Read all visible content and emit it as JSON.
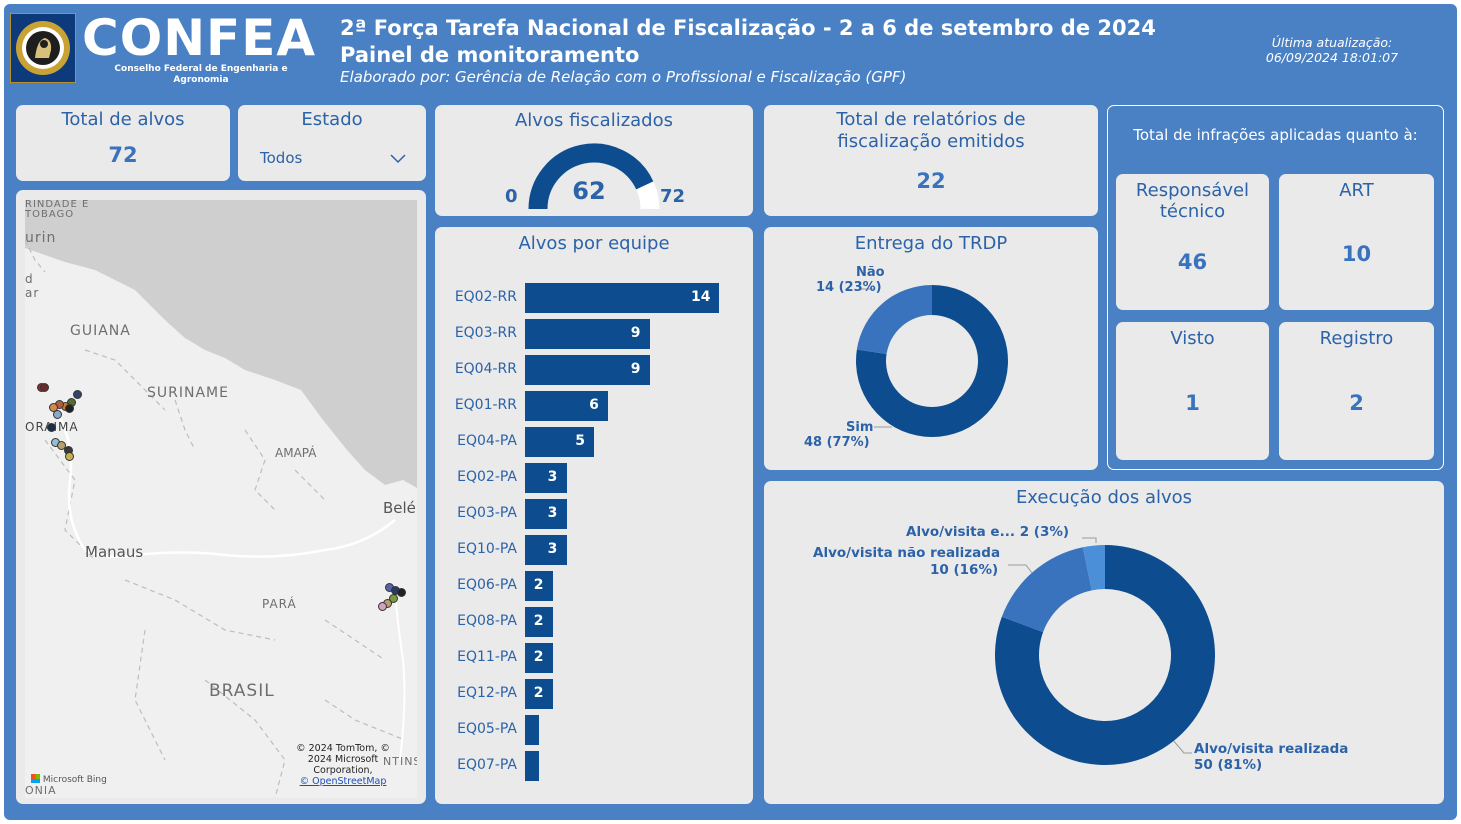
{
  "header": {
    "logo_text": "CONFEA",
    "logo_subtext": "Conselho Federal de Engenharia e Agronomia",
    "title": "2ª Força Tarefa Nacional de Fiscalização - 2 a 6 de setembro de 2024",
    "subtitle": "Painel de monitoramento",
    "author": "Elaborado por: Gerência de Relação com o Profissional e Fiscalização (GPF)",
    "updated_label": "Última atualização:",
    "updated_value": "06/09/2024 18:01:07"
  },
  "colors": {
    "background": "#4a81c4",
    "card": "#eaeaea",
    "dark_blue": "#0d4d8f",
    "mid_blue": "#3a73bd",
    "light_blue": "#4a8fd8"
  },
  "total_alvos": {
    "label": "Total de alvos",
    "value": "72"
  },
  "estado": {
    "label": "Estado",
    "selected": "Todos",
    "icon": "chevron-down-icon"
  },
  "gauge": {
    "title": "Alvos fiscalizados",
    "min": "0",
    "value": "62",
    "max": "72",
    "fraction": 0.8611
  },
  "relatorios": {
    "label": "Total de relatórios de fiscalização emitidos",
    "value": "22"
  },
  "infracoes": {
    "title": "Total de infrações aplicadas quanto à:",
    "items": [
      {
        "label": "Responsável técnico",
        "value": "46"
      },
      {
        "label": "ART",
        "value": "10"
      },
      {
        "label": "Visto",
        "value": "1"
      },
      {
        "label": "Registro",
        "value": "2"
      }
    ]
  },
  "map": {
    "labels": [
      "RINDADE E TOBAGO",
      "urin",
      "d",
      "ar",
      "GUIANA",
      "SURINAME",
      "ORAIMA",
      "AMAPÁ",
      "Belé",
      "Manaus",
      "PARÁ",
      "BRASIL",
      "ONIA",
      "NTINS"
    ],
    "attribution": "© 2024 TomTom, © 2024 Microsoft Corporation,",
    "osm": "© OpenStreetMap",
    "bing": "Microsoft Bing"
  },
  "chart_data": [
    {
      "type": "bar",
      "title": "Alvos por equipe",
      "categories": [
        "EQ02-RR",
        "EQ03-RR",
        "EQ04-RR",
        "EQ01-RR",
        "EQ04-PA",
        "EQ02-PA",
        "EQ03-PA",
        "EQ10-PA",
        "EQ06-PA",
        "EQ08-PA",
        "EQ11-PA",
        "EQ12-PA",
        "EQ05-PA",
        "EQ07-PA"
      ],
      "values": [
        14,
        9,
        9,
        6,
        5,
        3,
        3,
        3,
        2,
        2,
        2,
        2,
        1,
        1
      ],
      "value_labels": [
        "14",
        "9",
        "9",
        "6",
        "5",
        "3",
        "3",
        "3",
        "2",
        "2",
        "2",
        "2",
        "",
        ""
      ]
    },
    {
      "type": "pie",
      "title": "Entrega do TRDP",
      "labels": [
        "Sim",
        "Não"
      ],
      "values": [
        48,
        14
      ],
      "value_labels": [
        "48 (77%)",
        "14 (23%)"
      ],
      "colors": [
        "#0d4d8f",
        "#3a73bd"
      ]
    },
    {
      "type": "pie",
      "title": "Execução dos alvos",
      "labels": [
        "Alvo/visita realizada",
        "Alvo/visita não realizada",
        "Alvo/visita e..."
      ],
      "values": [
        50,
        10,
        2
      ],
      "value_labels": [
        "50 (81%)",
        "10 (16%)",
        "2 (3%)"
      ],
      "colors": [
        "#0d4d8f",
        "#3a73bd",
        "#4a8fd8"
      ]
    }
  ]
}
